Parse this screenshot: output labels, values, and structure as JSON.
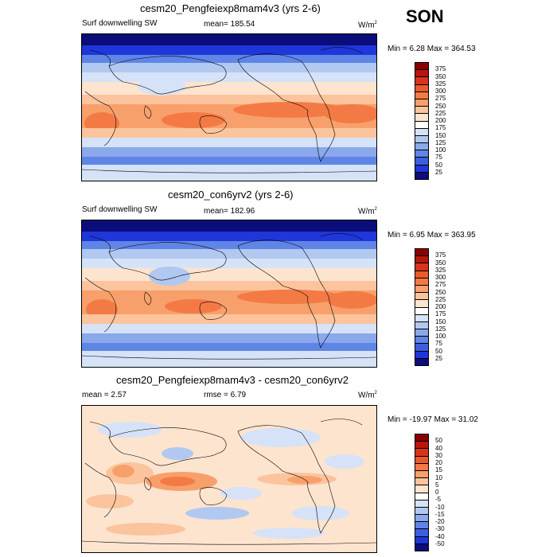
{
  "season": "SON",
  "panels": [
    {
      "title": "cesm20_Pengfeiexp8mam4v3 (yrs 2-6)",
      "left_label": "Surf downwelling SW",
      "center_label": "mean= 185.54",
      "units_base": "W/m",
      "units_exp": "2",
      "minmax": "Min =   6.28 Max = 364.53"
    },
    {
      "title": "cesm20_con6yrv2 (yrs 2-6)",
      "left_label": "Surf downwelling SW",
      "center_label": "mean= 182.96",
      "units_base": "W/m",
      "units_exp": "2",
      "minmax": "Min =   6.95 Max = 363.95"
    },
    {
      "title": "cesm20_Pengfeiexp8mam4v3 - cesm20_con6yrv2",
      "left_label": "mean =   2.57",
      "center_label": "rmse =   6.79",
      "units_base": "W/m",
      "units_exp": "2",
      "minmax": "Min = -19.97 Max =  31.02"
    }
  ],
  "colorbars": {
    "abs_levels": [
      "375",
      "350",
      "325",
      "300",
      "275",
      "250",
      "225",
      "200",
      "175",
      "150",
      "125",
      "100",
      "75",
      "50",
      "25"
    ],
    "abs_colors": [
      "#8b0000",
      "#b8160a",
      "#d9341a",
      "#ea5a2c",
      "#f47a45",
      "#f8a06c",
      "#fbc49d",
      "#fde4cf",
      "#ffffff",
      "#d6e2f7",
      "#b1c8f0",
      "#8aa8ea",
      "#5f85e6",
      "#3c5fe0",
      "#1f36d8",
      "#0a0d7a"
    ],
    "diff_levels": [
      "50",
      "40",
      "30",
      "20",
      "15",
      "10",
      "5",
      "0",
      "-5",
      "-10",
      "-15",
      "-20",
      "-30",
      "-40",
      "-50"
    ],
    "diff_colors": [
      "#8b0000",
      "#b8160a",
      "#d9341a",
      "#ea5a2c",
      "#f47a45",
      "#f8a06c",
      "#fbc49d",
      "#fde4cf",
      "#ffffff",
      "#d6e2f7",
      "#b1c8f0",
      "#8aa8ea",
      "#5f85e6",
      "#3c5fe0",
      "#1f36d8",
      "#0a0d7a"
    ]
  },
  "chart_data": [
    {
      "type": "heatmap",
      "title": "cesm20_Pengfeiexp8mam4v3 (yrs 2-6)",
      "variable": "Surf downwelling SW",
      "units": "W/m2",
      "mean": 185.54,
      "min": 6.28,
      "max": 364.53,
      "contour_levels": [
        25,
        50,
        75,
        100,
        125,
        150,
        175,
        200,
        225,
        250,
        275,
        300,
        325,
        350,
        375
      ]
    },
    {
      "type": "heatmap",
      "title": "cesm20_con6yrv2 (yrs 2-6)",
      "variable": "Surf downwelling SW",
      "units": "W/m2",
      "mean": 182.96,
      "min": 6.95,
      "max": 363.95,
      "contour_levels": [
        25,
        50,
        75,
        100,
        125,
        150,
        175,
        200,
        225,
        250,
        275,
        300,
        325,
        350,
        375
      ]
    },
    {
      "type": "heatmap",
      "title": "cesm20_Pengfeiexp8mam4v3 - cesm20_con6yrv2",
      "units": "W/m2",
      "mean": 2.57,
      "rmse": 6.79,
      "min": -19.97,
      "max": 31.02,
      "contour_levels": [
        -50,
        -40,
        -30,
        -20,
        -15,
        -10,
        -5,
        0,
        5,
        10,
        15,
        20,
        30,
        40,
        50
      ]
    }
  ]
}
